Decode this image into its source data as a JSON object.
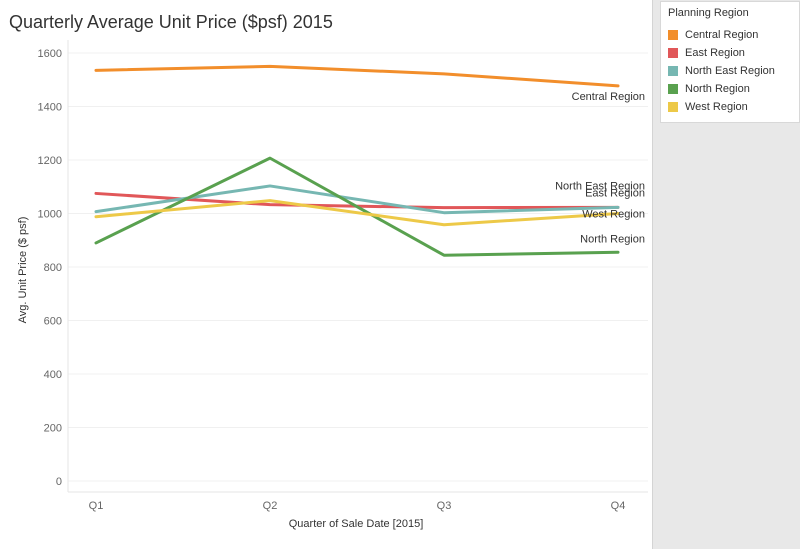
{
  "chart_data": {
    "type": "line",
    "title": "Quarterly Average Unit Price ($psf) 2015",
    "xlabel": "Quarter of Sale Date [2015]",
    "ylabel": "Avg. Unit Price ($ psf)",
    "categories": [
      "Q1",
      "Q2",
      "Q3",
      "Q4"
    ],
    "ylim": [
      0,
      1600
    ],
    "yticks": [
      0,
      200,
      400,
      600,
      800,
      1000,
      1200,
      1400,
      1600
    ],
    "grid": true,
    "legend": {
      "title": "Planning Region",
      "placement": "right"
    },
    "series": [
      {
        "name": "Central Region",
        "color": "#f28e2b",
        "values": [
          1535,
          1550,
          1522,
          1477
        ],
        "end_label": "Central Region"
      },
      {
        "name": "East Region",
        "color": "#e15759",
        "values": [
          1075,
          1033,
          1022,
          1023
        ],
        "end_label": "East Region"
      },
      {
        "name": "North East Region",
        "color": "#76b7b2",
        "values": [
          1007,
          1103,
          1003,
          1023
        ],
        "end_label": "North East Region"
      },
      {
        "name": "North Region",
        "color": "#59a14f",
        "values": [
          890,
          1207,
          844,
          855
        ],
        "end_label": "North Region"
      },
      {
        "name": "West Region",
        "color": "#edc948",
        "values": [
          988,
          1048,
          958,
          1000
        ],
        "end_label": "West Region"
      }
    ]
  }
}
